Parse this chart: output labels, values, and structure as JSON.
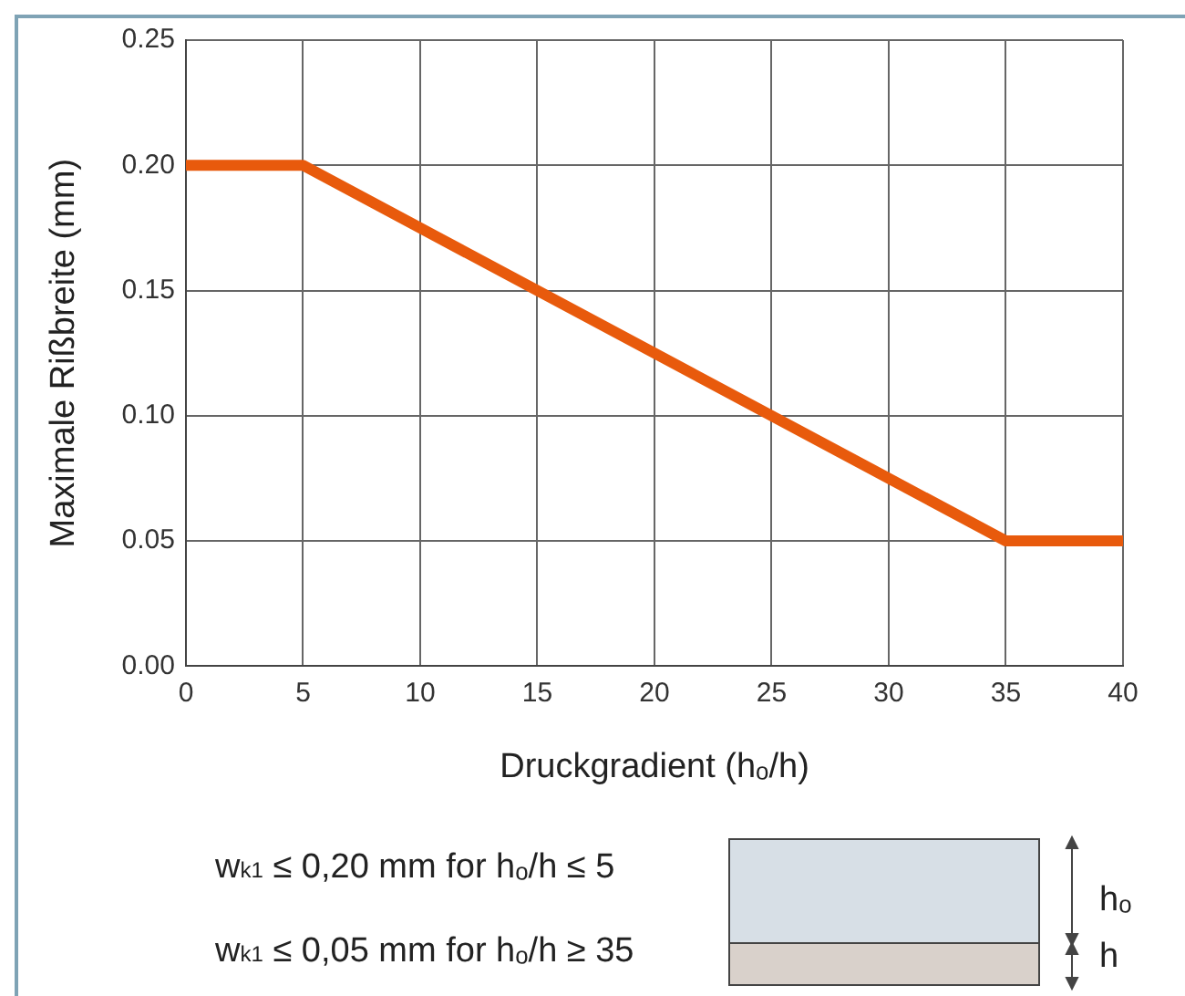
{
  "chart_data": {
    "type": "line",
    "xlabel": "Druckgradient (hₒ/h)",
    "ylabel": "Maximale Rißbreite (mm)",
    "x": [
      0,
      5,
      35,
      40
    ],
    "series": [
      {
        "color": "#e85a0c",
        "values": [
          0.2,
          0.2,
          0.05,
          0.05
        ]
      }
    ],
    "xlim": [
      0,
      40
    ],
    "xticks": [
      0,
      5,
      10,
      15,
      20,
      25,
      30,
      35,
      40
    ],
    "ylim": [
      0,
      0.25
    ],
    "yticks": [
      {
        "value": 0,
        "label": "0.00"
      },
      {
        "value": 0.05,
        "label": "0.05"
      },
      {
        "value": 0.1,
        "label": "0.10"
      },
      {
        "value": 0.15,
        "label": "0.15"
      },
      {
        "value": 0.2,
        "label": "0.20"
      },
      {
        "value": 0.25,
        "label": "0.25"
      }
    ],
    "grid": true,
    "legend": false,
    "marker": "none",
    "line_style": "solid",
    "annotations": [
      "w$_{k1}$ ≤ 0,20 mm for hₒ/h ≤ 5",
      "w$_{k1}$ ≤ 0,05 mm for hₒ/h ≥ 35",
      "hₒ",
      "h"
    ]
  }
}
